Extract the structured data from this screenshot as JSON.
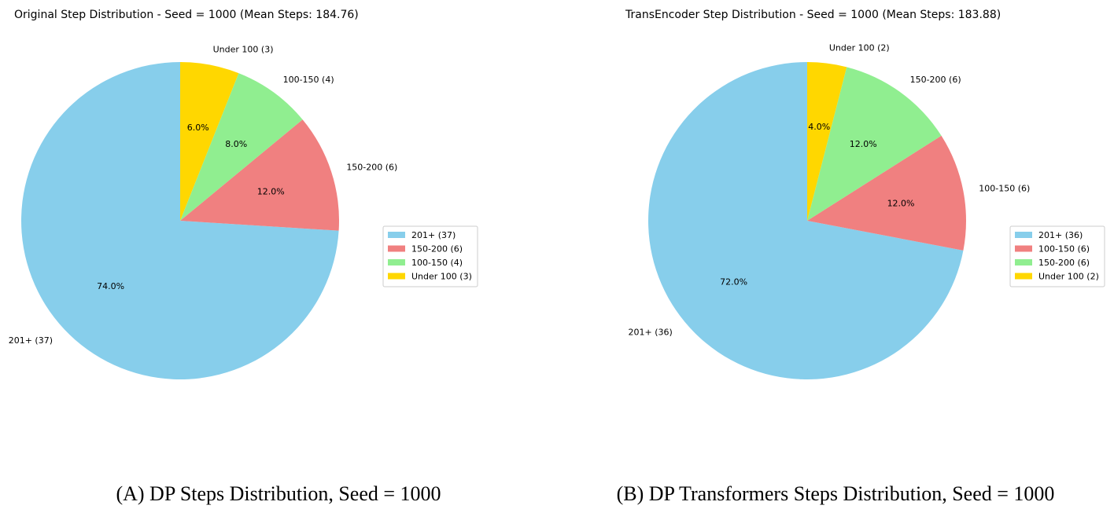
{
  "chart_data": [
    {
      "type": "pie",
      "title": "Original Step Distribution - Seed = 1000 (Mean Steps: 184.76)",
      "start_angle_deg": 90,
      "direction": "counterclockwise",
      "slices": [
        {
          "label": "201+ (37)",
          "value": 37,
          "pct_label": "74.0%",
          "color": "#87CEEB"
        },
        {
          "label": "150-200 (6)",
          "value": 6,
          "pct_label": "12.0%",
          "color": "#F08080"
        },
        {
          "label": "100-150 (4)",
          "value": 4,
          "pct_label": "8.0%",
          "color": "#90EE90"
        },
        {
          "label": "Under 100 (3)",
          "value": 3,
          "pct_label": "6.0%",
          "color": "#FFD700"
        }
      ],
      "legend": [
        "201+ (37)",
        "150-200 (6)",
        "100-150 (4)",
        "Under 100 (3)"
      ],
      "legend_loc": "right",
      "caption_tag": "(A)",
      "caption_text": "DP Steps Distribution, Seed = 1000"
    },
    {
      "type": "pie",
      "title": "TransEncoder Step Distribution - Seed = 1000 (Mean Steps: 183.88)",
      "start_angle_deg": 90,
      "direction": "counterclockwise",
      "slices": [
        {
          "label": "201+ (36)",
          "value": 36,
          "pct_label": "72.0%",
          "color": "#87CEEB"
        },
        {
          "label": "100-150 (6)",
          "value": 6,
          "pct_label": "12.0%",
          "color": "#F08080"
        },
        {
          "label": "150-200 (6)",
          "value": 6,
          "pct_label": "12.0%",
          "color": "#90EE90"
        },
        {
          "label": "Under 100 (2)",
          "value": 2,
          "pct_label": "4.0%",
          "color": "#FFD700"
        }
      ],
      "legend": [
        "201+ (36)",
        "100-150 (6)",
        "150-200 (6)",
        "Under 100 (2)"
      ],
      "legend_loc": "right",
      "caption_tag": "(B)",
      "caption_text": "DP Transformers Steps Distribution, Seed = 1000"
    }
  ]
}
